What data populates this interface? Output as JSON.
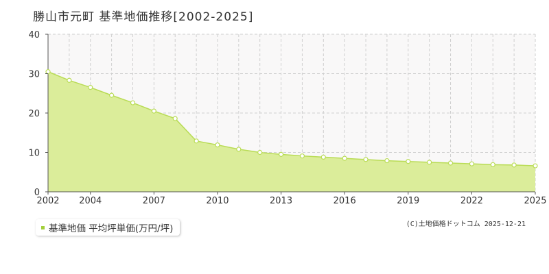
{
  "chart_data": {
    "type": "area",
    "title": "勝山市元町 基準地価推移[2002-2025]",
    "x": [
      2002,
      2003,
      2004,
      2005,
      2006,
      2007,
      2008,
      2009,
      2010,
      2011,
      2012,
      2013,
      2014,
      2015,
      2016,
      2017,
      2018,
      2019,
      2020,
      2021,
      2022,
      2023,
      2024,
      2025
    ],
    "series": [
      {
        "name": "基準地価 平均坪単価(万円/坪)",
        "values": [
          30.5,
          28.3,
          26.5,
          24.5,
          22.6,
          20.5,
          18.6,
          12.9,
          11.9,
          10.8,
          10.0,
          9.5,
          9.1,
          8.8,
          8.5,
          8.2,
          7.9,
          7.7,
          7.5,
          7.3,
          7.1,
          6.9,
          6.8,
          6.6
        ]
      }
    ],
    "x_tick_labels": [
      "2002",
      "2004",
      "2007",
      "2010",
      "2013",
      "2016",
      "2019",
      "2022",
      "2025"
    ],
    "x_tick_values": [
      2002,
      2004,
      2007,
      2010,
      2013,
      2016,
      2019,
      2022,
      2025
    ],
    "y_ticks": [
      0,
      10,
      20,
      30,
      40
    ],
    "ylim": [
      0,
      40
    ],
    "xlim": [
      2002,
      2025
    ],
    "grid": true,
    "legend": "bottom-left",
    "colors": {
      "fill": "#dbed9a",
      "line": "#b9dc55",
      "marker_stroke": "#b9dc55",
      "marker_fill": "#ffffff",
      "plot_bg": "#f9f8f8",
      "grid": "#cfcfcf",
      "legend_swatch": "#a3cf3a"
    }
  },
  "legend": {
    "label": "基準地価 平均坪単価(万円/坪)"
  },
  "credit": "(C)土地価格ドットコム 2025-12-21"
}
